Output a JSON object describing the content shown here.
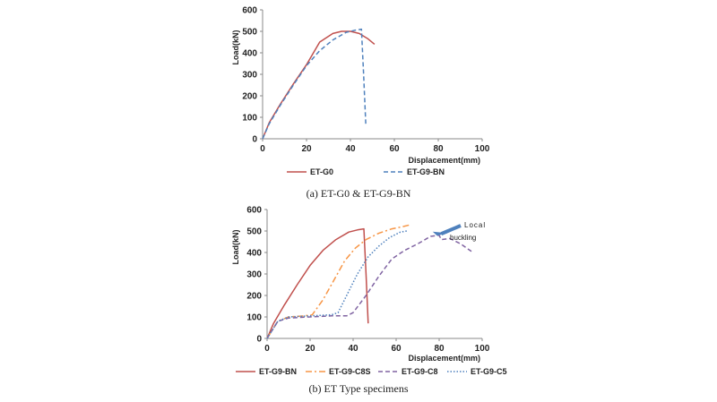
{
  "chart_data": [
    {
      "type": "line",
      "title": "",
      "caption": "(a)  ET-G0  &  ET-G9-BN",
      "xlabel": "Displacement(mm)",
      "ylabel": "Load(kN)",
      "xlim": [
        0,
        100
      ],
      "ylim": [
        0,
        600
      ],
      "xticks": [
        0,
        20,
        40,
        60,
        80,
        100
      ],
      "yticks": [
        0,
        100,
        200,
        300,
        400,
        500,
        600
      ],
      "grid": false,
      "legend_position": "bottom",
      "series": [
        {
          "name": "ET-G0",
          "color": "#c0504d",
          "style": "solid",
          "points": [
            [
              0,
              0
            ],
            [
              3,
              75
            ],
            [
              8,
              160
            ],
            [
              14,
              255
            ],
            [
              20,
              345
            ],
            [
              26,
              450
            ],
            [
              32,
              490
            ],
            [
              36,
              500
            ],
            [
              40,
              500
            ],
            [
              44,
              490
            ],
            [
              48,
              465
            ],
            [
              51,
              440
            ]
          ]
        },
        {
          "name": "ET-G9-BN",
          "color": "#4f81bd",
          "style": "dashed",
          "points": [
            [
              0,
              0
            ],
            [
              3,
              70
            ],
            [
              8,
              155
            ],
            [
              14,
              250
            ],
            [
              20,
              340
            ],
            [
              26,
              410
            ],
            [
              32,
              460
            ],
            [
              38,
              495
            ],
            [
              42,
              505
            ],
            [
              45,
              510
            ],
            [
              46,
              300
            ],
            [
              47,
              70
            ]
          ]
        }
      ]
    },
    {
      "type": "line",
      "title": "",
      "caption": "(b)  ET  Type  specimens",
      "xlabel": "Displacement(mm)",
      "ylabel": "Load(kN)",
      "xlim": [
        0,
        100
      ],
      "ylim": [
        0,
        600
      ],
      "xticks": [
        0,
        20,
        40,
        60,
        80,
        100
      ],
      "yticks": [
        0,
        100,
        200,
        300,
        400,
        500,
        600
      ],
      "grid": false,
      "legend_position": "bottom",
      "annotation": {
        "line1": "Local",
        "line2": "buckling",
        "arrow_color": "#4f81bd"
      },
      "series": [
        {
          "name": "ET-G9-BN",
          "color": "#c0504d",
          "style": "solid",
          "points": [
            [
              0,
              0
            ],
            [
              3,
              70
            ],
            [
              8,
              155
            ],
            [
              14,
              250
            ],
            [
              20,
              340
            ],
            [
              26,
              410
            ],
            [
              32,
              460
            ],
            [
              38,
              495
            ],
            [
              42,
              505
            ],
            [
              45,
              510
            ],
            [
              46,
              300
            ],
            [
              47,
              70
            ]
          ]
        },
        {
          "name": "ET-G9-C8S",
          "color": "#f79646",
          "style": "dashdot",
          "points": [
            [
              0,
              0
            ],
            [
              5,
              80
            ],
            [
              10,
              100
            ],
            [
              17,
              105
            ],
            [
              21,
              110
            ],
            [
              26,
              180
            ],
            [
              31,
              270
            ],
            [
              36,
              360
            ],
            [
              41,
              420
            ],
            [
              46,
              460
            ],
            [
              52,
              490
            ],
            [
              58,
              510
            ],
            [
              63,
              520
            ],
            [
              67,
              530
            ]
          ]
        },
        {
          "name": "ET-G9-C8",
          "color": "#8064a2",
          "style": "dashed",
          "points": [
            [
              0,
              0
            ],
            [
              5,
              80
            ],
            [
              10,
              95
            ],
            [
              20,
              100
            ],
            [
              30,
              105
            ],
            [
              37,
              105
            ],
            [
              40,
              120
            ],
            [
              46,
              200
            ],
            [
              52,
              290
            ],
            [
              58,
              370
            ],
            [
              64,
              410
            ],
            [
              70,
              440
            ],
            [
              76,
              475
            ],
            [
              80,
              480
            ],
            [
              81,
              460
            ],
            [
              85,
              465
            ],
            [
              90,
              440
            ],
            [
              95,
              405
            ]
          ]
        },
        {
          "name": "ET-G9-C5",
          "color": "#4f81bd",
          "style": "dotted",
          "points": [
            [
              0,
              0
            ],
            [
              5,
              80
            ],
            [
              10,
              100
            ],
            [
              20,
              105
            ],
            [
              30,
              110
            ],
            [
              33,
              120
            ],
            [
              37,
              200
            ],
            [
              42,
              300
            ],
            [
              47,
              380
            ],
            [
              52,
              430
            ],
            [
              57,
              470
            ],
            [
              62,
              495
            ],
            [
              65,
              500
            ]
          ]
        }
      ]
    }
  ]
}
